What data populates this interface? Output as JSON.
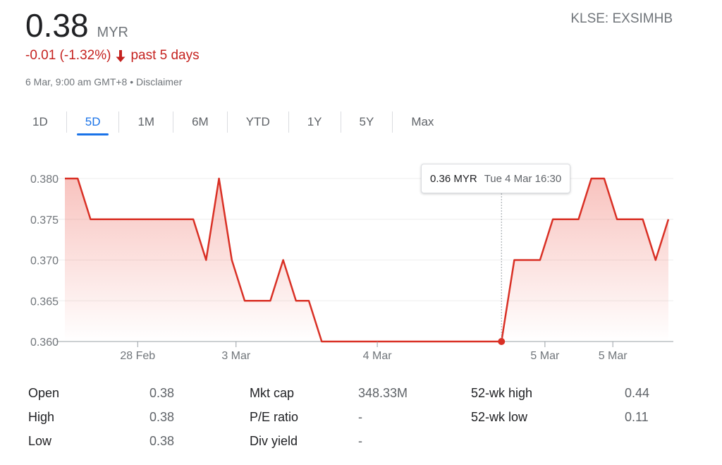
{
  "quote": {
    "price": "0.38",
    "currency": "MYR",
    "ticker": "KLSE: EXSIMHB",
    "change": "-0.01 (-1.32%)",
    "period": "past 5 days",
    "timestamp": "6 Mar, 9:00 am GMT+8",
    "separator": "•",
    "disclaimer": "Disclaimer",
    "negative_color": "#d93025"
  },
  "tabs": [
    {
      "label": "1D",
      "active": false
    },
    {
      "label": "5D",
      "active": true
    },
    {
      "label": "1M",
      "active": false
    },
    {
      "label": "6M",
      "active": false
    },
    {
      "label": "YTD",
      "active": false
    },
    {
      "label": "1Y",
      "active": false
    },
    {
      "label": "5Y",
      "active": false
    },
    {
      "label": "Max",
      "active": false
    }
  ],
  "tooltip": {
    "price": "0.36 MYR",
    "time": "Tue 4 Mar 16:30"
  },
  "chart_data": {
    "type": "area",
    "ylim": [
      0.36,
      0.38
    ],
    "y_ticks": [
      "0.380",
      "0.375",
      "0.370",
      "0.365",
      "0.360"
    ],
    "x_tick_labels": [
      "28 Feb",
      "3 Mar",
      "4 Mar",
      "5 Mar",
      "5 Mar"
    ],
    "grid": true,
    "line_color": "#d93025",
    "values": [
      0.38,
      0.38,
      0.375,
      0.375,
      0.375,
      0.375,
      0.375,
      0.375,
      0.375,
      0.375,
      0.375,
      0.37,
      0.38,
      0.37,
      0.365,
      0.365,
      0.365,
      0.37,
      0.365,
      0.365,
      0.36,
      0.36,
      0.36,
      0.36,
      0.36,
      0.36,
      0.36,
      0.36,
      0.36,
      0.36,
      0.36,
      0.36,
      0.36,
      0.36,
      0.36,
      0.37,
      0.37,
      0.37,
      0.375,
      0.375,
      0.375,
      0.38,
      0.38,
      0.375,
      0.375,
      0.375,
      0.37,
      0.375
    ],
    "highlight_index": 34
  },
  "stats": {
    "col1": [
      {
        "label": "Open",
        "value": "0.38"
      },
      {
        "label": "High",
        "value": "0.38"
      },
      {
        "label": "Low",
        "value": "0.38"
      }
    ],
    "col2": [
      {
        "label": "Mkt cap",
        "value": "348.33M"
      },
      {
        "label": "P/E ratio",
        "value": "-"
      },
      {
        "label": "Div yield",
        "value": "-"
      }
    ],
    "col3": [
      {
        "label": "52-wk high",
        "value": "0.44"
      },
      {
        "label": "52-wk low",
        "value": "0.11"
      }
    ]
  }
}
